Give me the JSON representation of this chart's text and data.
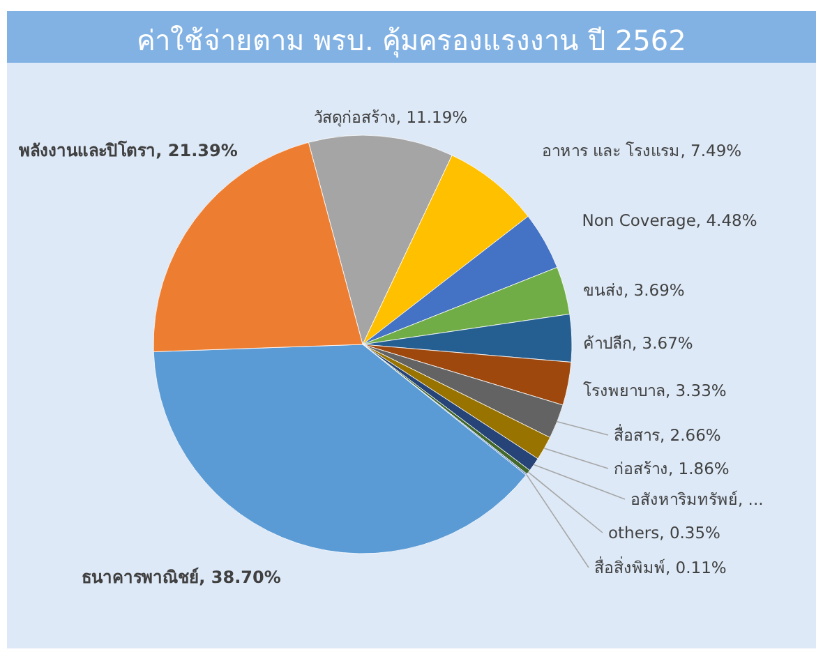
{
  "chart_data": {
    "type": "pie",
    "title": "ค่าใช้จ่ายตาม พรบ. คุ้มครองแรงงาน ปี 2562",
    "categories": [
      "วัสดุก่อสร้าง",
      "อาหาร และ โรงแรม",
      "Non Coverage",
      "ขนส่ง",
      "ค้าปลีก",
      "โรงพยาบาล",
      "สื่อสาร",
      "ก่อสร้าง",
      "อสังหาริมทรัพย์",
      "others",
      "สื่อสิ่งพิมพ์",
      "ธนาคารพาณิชย์",
      "พลังงานและปิโตรา"
    ],
    "values": [
      11.19,
      7.49,
      4.48,
      3.69,
      3.67,
      3.33,
      2.66,
      1.86,
      1.08,
      0.35,
      0.11,
      38.7,
      21.39
    ],
    "value_labels": [
      "11.19%",
      "7.49%",
      "4.48%",
      "3.69%",
      "3.67%",
      "3.33%",
      "2.66%",
      "1.86%",
      "...",
      "0.35%",
      "0.11%",
      "38.70%",
      "21.39%"
    ],
    "colors": [
      "#a5a5a5",
      "#ffc000",
      "#4472c4",
      "#70ad47",
      "#255e91",
      "#9e480e",
      "#636363",
      "#997300",
      "#264478",
      "#43682b",
      "#698ed0",
      "#5b9bd5",
      "#ed7d31"
    ]
  }
}
